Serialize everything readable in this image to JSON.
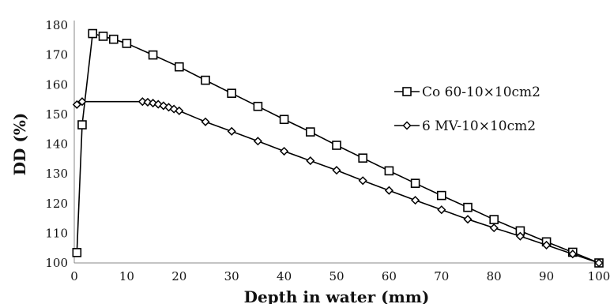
{
  "chart_data": {
    "type": "line",
    "xlabel": "Depth in water (mm)",
    "ylabel": "DD (%)",
    "xlim": [
      0,
      100
    ],
    "ylim": [
      100,
      180
    ],
    "x_ticks": [
      0,
      10,
      20,
      30,
      40,
      50,
      60,
      70,
      80,
      90,
      100
    ],
    "y_ticks": [
      100,
      110,
      120,
      130,
      140,
      150,
      160,
      170,
      180
    ],
    "grid": false,
    "legend_position": "right",
    "series": [
      {
        "name": "Co 60-10×10cm2",
        "marker": "square",
        "color": "#000000",
        "x": [
          0.5,
          1.5,
          3.5,
          5.5,
          7.5,
          10,
          15,
          20,
          25,
          30,
          35,
          40,
          45,
          50,
          55,
          60,
          65,
          70,
          75,
          80,
          85,
          90,
          95,
          100
        ],
        "y": [
          103.5,
          146.5,
          177.2,
          176.3,
          175.3,
          173.9,
          170,
          166,
          161.5,
          157.1,
          152.7,
          148.3,
          144.1,
          139.6,
          135.3,
          131,
          126.8,
          122.7,
          118.7,
          114.6,
          110.8,
          107.1,
          103.6,
          100
        ]
      },
      {
        "name": "6 MV-10×10cm2",
        "marker": "diamond",
        "color": "#000000",
        "x": [
          0.5,
          1.5,
          13,
          14,
          15,
          16,
          17,
          18,
          19,
          20,
          25,
          30,
          35,
          40,
          45,
          50,
          55,
          60,
          65,
          70,
          75,
          80,
          85,
          90,
          95,
          100
        ],
        "y": [
          153.3,
          154.3,
          154.3,
          154.1,
          153.8,
          153.4,
          152.9,
          152.4,
          151.8,
          151.2,
          147.5,
          144.3,
          141,
          137.6,
          134.4,
          131.2,
          127.7,
          124.4,
          121.1,
          117.9,
          114.7,
          111.8,
          109,
          106,
          103,
          100
        ]
      }
    ]
  }
}
